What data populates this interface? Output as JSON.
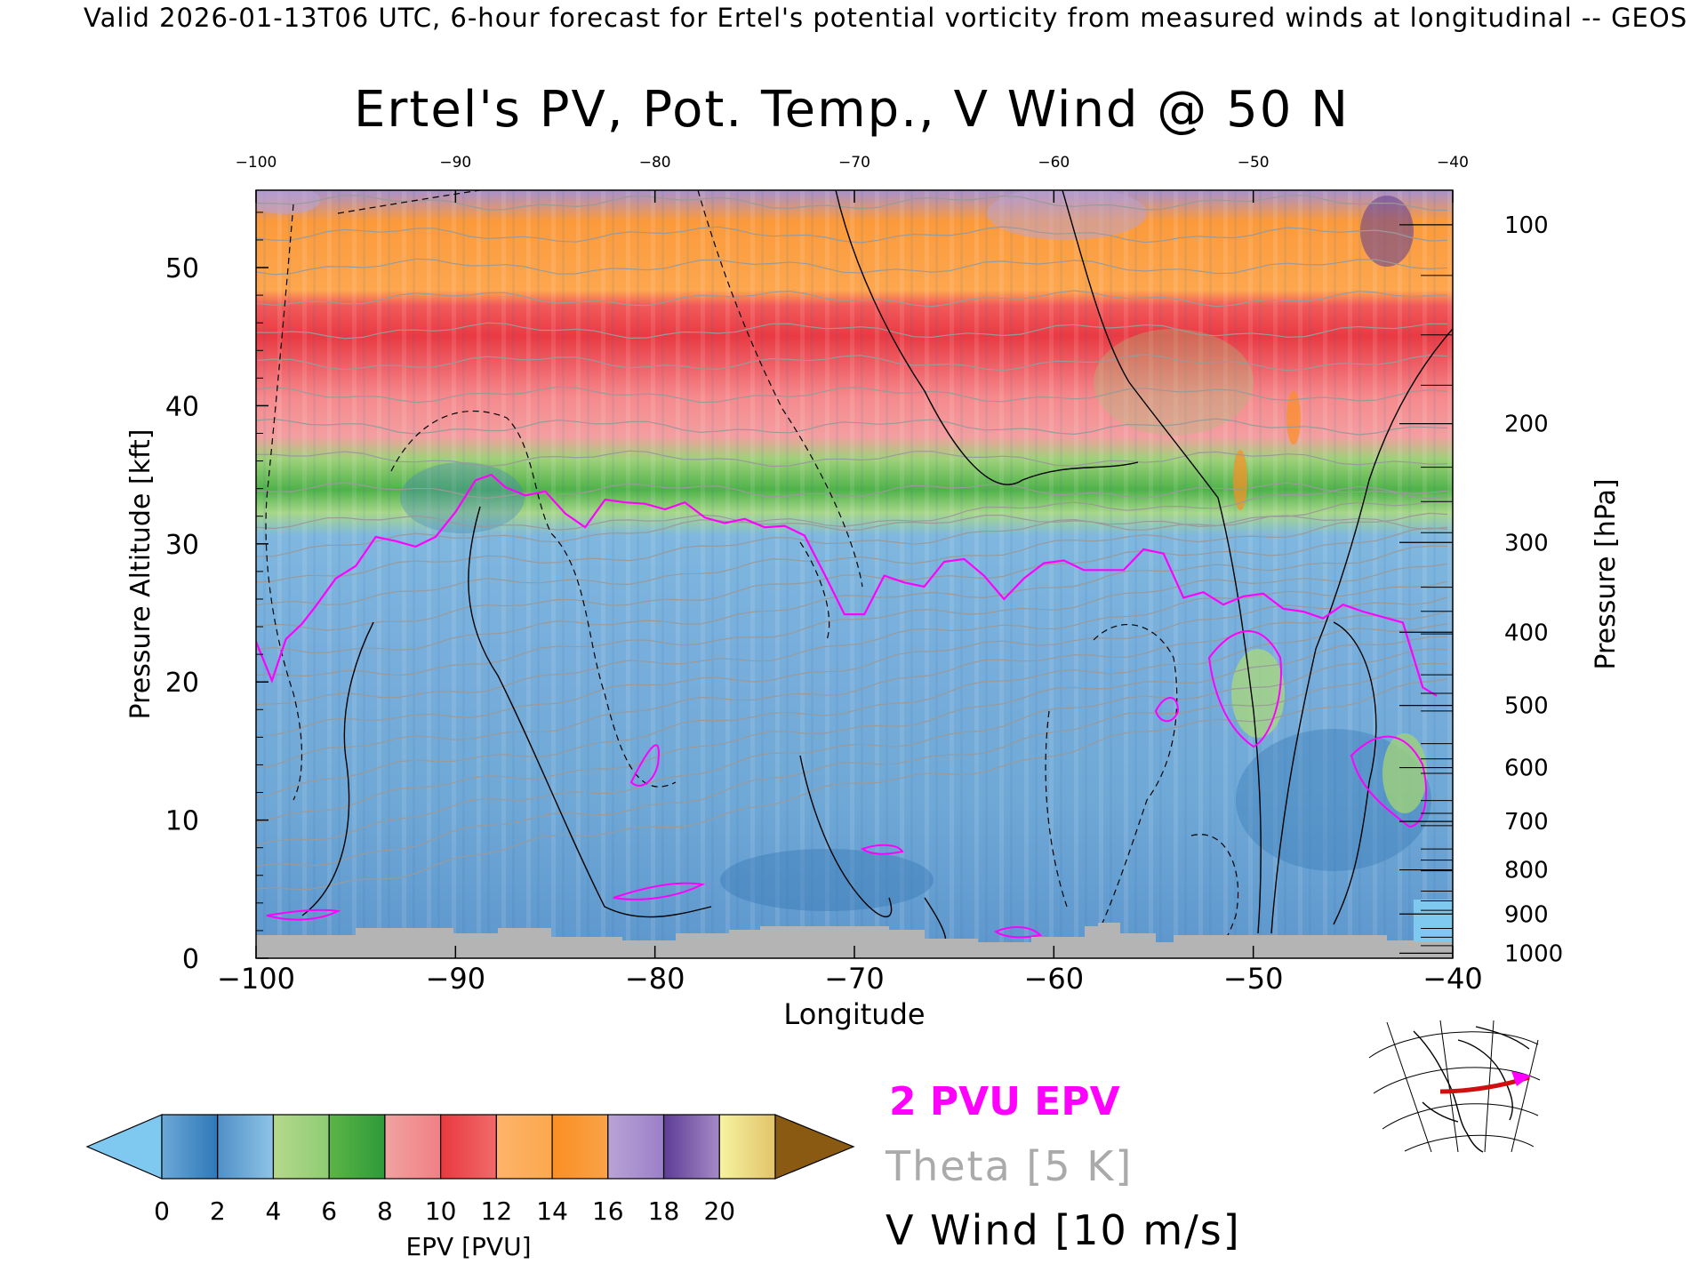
{
  "header_text": "Valid 2026-01-13T06 UTC, 6-hour forecast for Ertel's potential vorticity from measured winds at longitudinal -- GEOS",
  "chart_data": {
    "type": "heatmap",
    "title": "Ertel's PV, Pot. Temp., V Wind @ 50 N",
    "xlabel": "Longitude",
    "ylabel_left": "Pressure Altitude [kft]",
    "ylabel_right": "Pressure [hPa]",
    "xlim": [
      -100,
      -40
    ],
    "ylim": [
      0,
      55.6
    ],
    "x_ticks": [
      -100,
      -90,
      -80,
      -70,
      -60,
      -50,
      -40
    ],
    "x_tick_labels": [
      "−100",
      "−90",
      "−80",
      "−70",
      "−60",
      "−50",
      "−40"
    ],
    "top_tick_labels": [
      "−100",
      "−90",
      "−80",
      "−70",
      "−60",
      "−50",
      "−40"
    ],
    "y_ticks": [
      0,
      10,
      20,
      30,
      40,
      50
    ],
    "y_tick_labels": [
      "0",
      "10",
      "20",
      "30",
      "40",
      "50"
    ],
    "pressure_ticks": [
      {
        "hpa": 100,
        "kft": 53.1,
        "label": "100"
      },
      {
        "hpa": 200,
        "kft": 38.7,
        "label": "200"
      },
      {
        "hpa": 300,
        "kft": 30.1,
        "label": "300"
      },
      {
        "hpa": 400,
        "kft": 23.6,
        "label": "400"
      },
      {
        "hpa": 500,
        "kft": 18.3,
        "label": "500"
      },
      {
        "hpa": 600,
        "kft": 13.8,
        "label": "600"
      },
      {
        "hpa": 700,
        "kft": 9.9,
        "label": "700"
      },
      {
        "hpa": 800,
        "kft": 6.4,
        "label": "800"
      },
      {
        "hpa": 900,
        "kft": 3.2,
        "label": "900"
      },
      {
        "hpa": 1000,
        "kft": 0.36,
        "label": "1000"
      }
    ],
    "colorbar": {
      "label": "EPV [PVU]",
      "tick_labels": [
        "0",
        "2",
        "4",
        "6",
        "8",
        "10",
        "12",
        "14",
        "16",
        "18",
        "20"
      ],
      "under_color": "#7fc8f0",
      "over_color": "#8a5a12",
      "bins": [
        [
          "#6ba8d6",
          "#2f78b8"
        ],
        [
          "#4f8fc8",
          "#8ec4e6"
        ],
        [
          "#b5d98b",
          "#8fcc74"
        ],
        [
          "#5cb545",
          "#2e9a3a"
        ],
        [
          "#f0a2a0",
          "#f07f85"
        ],
        [
          "#e8393f",
          "#f26a6a"
        ],
        [
          "#fdb46a",
          "#fca84e"
        ],
        [
          "#fb8e23",
          "#f9a347"
        ],
        [
          "#b9a3d6",
          "#9b7fc8"
        ],
        [
          "#5d3c96",
          "#a68ac6"
        ],
        [
          "#f6f3a0",
          "#e2c36a"
        ]
      ]
    },
    "series": [
      {
        "name": "2 PVU EPV",
        "color": "#ff00ff"
      },
      {
        "name": "Theta [5 K]",
        "color": "#aaaaaa"
      },
      {
        "name": "V Wind [10 m/s]",
        "color": "#000000"
      }
    ],
    "pv2_tropopause": {
      "x": [
        -100,
        -99.2,
        -98.5,
        -97.7,
        -97,
        -96,
        -95,
        -94,
        -93,
        -92,
        -91,
        -90,
        -89,
        -88.2,
        -87.5,
        -86.5,
        -85.5,
        -84.5,
        -83.5,
        -82.5,
        -81.5,
        -80.5,
        -79.5,
        -78.5,
        -77.5,
        -76.5,
        -75.5,
        -74.5,
        -73.5,
        -72.5,
        -71.5,
        -70.5,
        -69.5,
        -68.5,
        -67.5,
        -66.5,
        -65.5,
        -64.5,
        -63.5,
        -62.5,
        -61.5,
        -60.5,
        -59.5,
        -58.5,
        -57.5,
        -56.5,
        -55.5,
        -54.5,
        -53.5,
        -52.5,
        -51.5,
        -50.5,
        -49.5,
        -48.5,
        -47.5,
        -46.5,
        -45.5,
        -44.5,
        -43.5,
        -42.5,
        -41.5,
        -40.8
      ],
      "y": [
        22.9,
        20.1,
        23.1,
        24.2,
        25.5,
        27.5,
        28.4,
        30.5,
        30.2,
        29.8,
        30.5,
        32.3,
        34.6,
        35.0,
        34.1,
        33.5,
        33.8,
        32.2,
        31.2,
        33.2,
        33.0,
        32.9,
        32.5,
        33.0,
        31.9,
        31.5,
        31.8,
        31.2,
        31.3,
        30.6,
        27.8,
        24.9,
        24.9,
        27.7,
        27.2,
        26.9,
        28.7,
        28.9,
        27.7,
        26.0,
        27.5,
        28.6,
        28.8,
        28.1,
        28.1,
        28.1,
        29.6,
        29.3,
        26.1,
        26.5,
        25.6,
        26.2,
        26.4,
        25.3,
        25.1,
        24.6,
        25.6,
        25.1,
        24.7,
        24.3,
        19.6,
        19.0
      ]
    }
  }
}
